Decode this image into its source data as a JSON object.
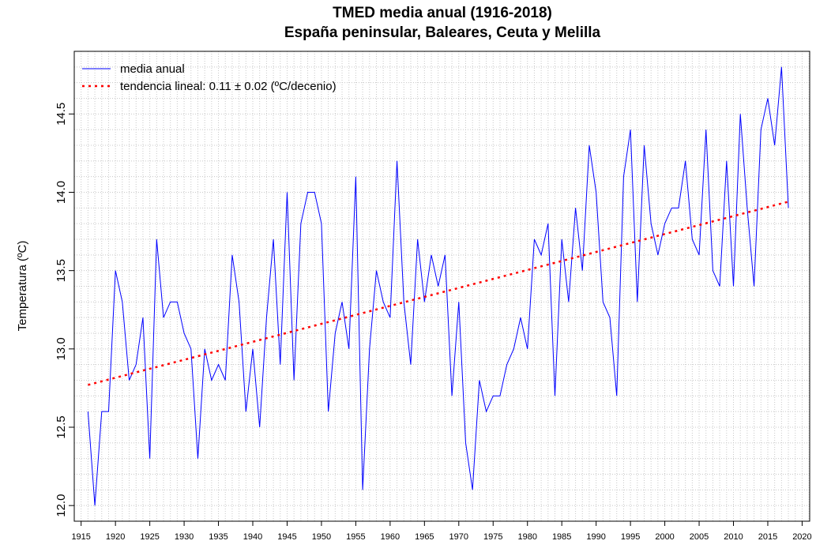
{
  "chart_data": {
    "type": "line",
    "title": "TMED media anual (1916-2018)",
    "subtitle": "España peninsular, Baleares, Ceuta y Melilla",
    "y_label": "Temperatura (ºC)",
    "x": [
      1916,
      1917,
      1918,
      1919,
      1920,
      1921,
      1922,
      1923,
      1924,
      1925,
      1926,
      1927,
      1928,
      1929,
      1930,
      1931,
      1932,
      1933,
      1934,
      1935,
      1936,
      1937,
      1938,
      1939,
      1940,
      1941,
      1942,
      1943,
      1944,
      1945,
      1946,
      1947,
      1948,
      1949,
      1950,
      1951,
      1952,
      1953,
      1954,
      1955,
      1956,
      1957,
      1958,
      1959,
      1960,
      1961,
      1962,
      1963,
      1964,
      1965,
      1966,
      1967,
      1968,
      1969,
      1970,
      1971,
      1972,
      1973,
      1974,
      1975,
      1976,
      1977,
      1978,
      1979,
      1980,
      1981,
      1982,
      1983,
      1984,
      1985,
      1986,
      1987,
      1988,
      1989,
      1990,
      1991,
      1992,
      1993,
      1994,
      1995,
      1996,
      1997,
      1998,
      1999,
      2000,
      2001,
      2002,
      2003,
      2004,
      2005,
      2006,
      2007,
      2008,
      2009,
      2010,
      2011,
      2012,
      2013,
      2014,
      2015,
      2016,
      2017,
      2018
    ],
    "series": [
      {
        "name": "media anual",
        "color": "#0000ff",
        "style": "solid",
        "values": [
          12.6,
          12.0,
          12.6,
          12.6,
          13.5,
          13.3,
          12.8,
          12.9,
          13.2,
          12.3,
          13.7,
          13.2,
          13.3,
          13.3,
          13.1,
          13.0,
          12.3,
          13.0,
          12.8,
          12.9,
          12.8,
          13.6,
          13.3,
          12.6,
          13.0,
          12.5,
          13.2,
          13.7,
          12.9,
          14.0,
          12.8,
          13.8,
          14.0,
          14.0,
          13.8,
          12.6,
          13.1,
          13.3,
          13.0,
          14.1,
          12.1,
          13.0,
          13.5,
          13.3,
          13.2,
          14.2,
          13.3,
          12.9,
          13.7,
          13.3,
          13.6,
          13.4,
          13.6,
          12.7,
          13.3,
          12.4,
          12.1,
          12.8,
          12.6,
          12.7,
          12.7,
          12.9,
          13.0,
          13.2,
          13.0,
          13.7,
          13.6,
          13.8,
          12.7,
          13.7,
          13.3,
          13.9,
          13.5,
          14.3,
          14.0,
          13.3,
          13.2,
          12.7,
          14.1,
          14.4,
          13.3,
          14.3,
          13.8,
          13.6,
          13.8,
          13.9,
          13.9,
          14.2,
          13.7,
          13.6,
          14.4,
          13.5,
          13.4,
          14.2,
          13.4,
          14.5,
          13.9,
          13.4,
          14.4,
          14.6,
          14.3,
          14.8,
          13.9
        ]
      },
      {
        "name": "tendencia lineal: 0.11 ± 0.02 (ºC/decenio)",
        "color": "#ff0000",
        "style": "dotted",
        "x": [
          1916,
          2018
        ],
        "values": [
          12.77,
          13.94
        ]
      }
    ],
    "xlim": [
      1914,
      2021.1
    ],
    "ylim": [
      11.9,
      14.9
    ],
    "xticks": [
      1915,
      1920,
      1925,
      1930,
      1935,
      1940,
      1945,
      1950,
      1955,
      1960,
      1965,
      1970,
      1975,
      1980,
      1985,
      1990,
      1995,
      2000,
      2005,
      2010,
      2015,
      2020
    ],
    "yticks": [
      {
        "value": 12,
        "label": "12.0"
      },
      12.5,
      {
        "value": 13,
        "label": "13.0"
      },
      13.5,
      {
        "value": 14,
        "label": "14.0"
      },
      14.5
    ],
    "grid": true,
    "legend": "top-left"
  }
}
